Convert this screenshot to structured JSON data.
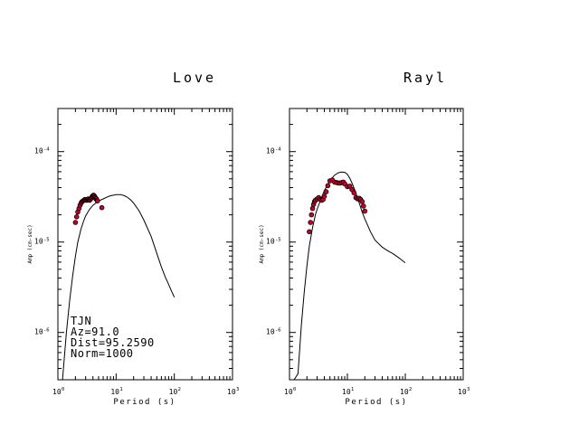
{
  "chart_data": [
    {
      "type": "line",
      "title": "Love",
      "xlabel": "Period (s)",
      "ylabel": "Amp (cm-sec)",
      "x_scale": "log",
      "y_scale": "log",
      "xlim": [
        1,
        1000
      ],
      "ylim": [
        3e-07,
        0.0003
      ],
      "x_ticks": [
        {
          "base": "10",
          "exp": "0"
        },
        {
          "base": "10",
          "exp": "1"
        },
        {
          "base": "10",
          "exp": "2"
        },
        {
          "base": "10",
          "exp": "3"
        }
      ],
      "y_ticks": [
        {
          "value": 1e-06,
          "base": "10",
          "exp": "-6"
        },
        {
          "value": 1e-05,
          "base": "10",
          "exp": "-5"
        },
        {
          "value": 0.0001,
          "base": "10",
          "exp": "-4"
        }
      ],
      "annotation": [
        "TJN",
        "Az=91.0",
        "Dist=95.2590",
        "Norm=1000"
      ],
      "series": [
        {
          "kind": "line",
          "x": [
            1.2,
            1.4,
            1.6,
            1.8,
            2.0,
            2.2,
            2.5,
            2.8,
            3.0,
            3.5,
            4.0,
            5.0,
            6.0,
            7.0,
            8.0,
            9.0,
            10.0,
            11.0,
            12.0,
            14.0,
            16.0,
            18.0,
            20.0,
            25.0,
            30.0,
            40.0,
            50.0,
            60.0,
            70.0,
            80.0,
            90.0,
            100.0
          ],
          "y": [
            3e-07,
            1e-06,
            2.3e-06,
            4.3e-06,
            7e-06,
            1e-05,
            1.4e-05,
            1.75e-05,
            1.95e-05,
            2.3e-05,
            2.55e-05,
            2.85e-05,
            3e-05,
            3.15e-05,
            3.25e-05,
            3.3e-05,
            3.35e-05,
            3.35e-05,
            3.35e-05,
            3.25e-05,
            3.1e-05,
            2.9e-05,
            2.7e-05,
            2.2e-05,
            1.75e-05,
            1.15e-05,
            7.5e-06,
            5.3e-06,
            4.1e-06,
            3.4e-06,
            2.85e-06,
            2.45e-06
          ]
        },
        {
          "kind": "scatter",
          "x": [
            2.0,
            2.1,
            2.2,
            2.3,
            2.4,
            2.5,
            2.6,
            2.7,
            2.8,
            2.9,
            3.0,
            3.1,
            3.2,
            3.3,
            3.4,
            3.5,
            3.6,
            3.7,
            3.8,
            3.9,
            4.0,
            4.1,
            4.2,
            4.3,
            4.4,
            4.5,
            4.6,
            4.7,
            4.8,
            5.7
          ],
          "y": [
            1.65e-05,
            1.9e-05,
            2.15e-05,
            2.35e-05,
            2.55e-05,
            2.7e-05,
            2.8e-05,
            2.85e-05,
            2.9e-05,
            2.95e-05,
            2.95e-05,
            2.9e-05,
            2.95e-05,
            3e-05,
            2.95e-05,
            2.9e-05,
            2.95e-05,
            3.05e-05,
            3.1e-05,
            3.2e-05,
            3.25e-05,
            3.3e-05,
            3.25e-05,
            3.15e-05,
            3.1e-05,
            3e-05,
            3e-05,
            2.9e-05,
            2.85e-05,
            2.4e-05
          ]
        }
      ]
    },
    {
      "type": "line",
      "title": "Rayl",
      "xlabel": "Period (s)",
      "ylabel": "Amp (cm-sec)",
      "x_scale": "log",
      "y_scale": "log",
      "xlim": [
        1,
        1000
      ],
      "ylim": [
        3e-07,
        0.0003
      ],
      "x_ticks": [
        {
          "base": "10",
          "exp": "0"
        },
        {
          "base": "10",
          "exp": "1"
        },
        {
          "base": "10",
          "exp": "2"
        },
        {
          "base": "10",
          "exp": "3"
        }
      ],
      "y_ticks": [
        {
          "value": 1e-06,
          "base": "10",
          "exp": "-6"
        },
        {
          "value": 1e-05,
          "base": "10",
          "exp": "-5"
        },
        {
          "value": 0.0001,
          "base": "10",
          "exp": "-4"
        }
      ],
      "series": [
        {
          "kind": "line",
          "x": [
            1.2,
            1.4,
            1.6,
            1.8,
            2.0,
            2.2,
            2.5,
            2.8,
            3.0,
            3.5,
            4.0,
            5.0,
            6.0,
            7.0,
            8.0,
            9.0,
            10.0,
            11.0,
            12.0,
            14.0,
            16.0,
            18.0,
            20.0,
            25.0,
            30.0,
            40.0,
            50.0,
            60.0,
            70.0,
            80.0,
            90.0,
            100.0
          ],
          "y": [
            3e-07,
            3.5e-07,
            1.2e-06,
            2.8e-06,
            5.5e-06,
            9e-06,
            1.45e-05,
            2e-05,
            2.3e-05,
            3e-05,
            3.7e-05,
            4.8e-05,
            5.5e-05,
            5.85e-05,
            5.95e-05,
            5.9e-05,
            5.6e-05,
            5.1e-05,
            4.5e-05,
            3.5e-05,
            2.7e-05,
            2.15e-05,
            1.8e-05,
            1.3e-05,
            1.05e-05,
            8.8e-06,
            8e-06,
            7.5e-06,
            7e-06,
            6.6e-06,
            6.2e-06,
            5.9e-06
          ]
        },
        {
          "kind": "scatter",
          "x": [
            2.2,
            2.3,
            2.4,
            2.5,
            2.6,
            2.7,
            2.8,
            3.0,
            3.2,
            3.4,
            3.6,
            3.8,
            4.0,
            4.3,
            4.6,
            5.0,
            5.5,
            6.0,
            6.5,
            7.0,
            7.5,
            8.0,
            8.5,
            9.0,
            10.0,
            11.0,
            12.0,
            13.0,
            14.0,
            15.0,
            16.0,
            17.0,
            18.0,
            19.0,
            20.0
          ],
          "y": [
            1.3e-05,
            1.65e-05,
            2e-05,
            2.35e-05,
            2.6e-05,
            2.8e-05,
            2.9e-05,
            3e-05,
            3.1e-05,
            2.95e-05,
            2.9e-05,
            2.95e-05,
            3.2e-05,
            3.6e-05,
            4.2e-05,
            4.75e-05,
            4.85e-05,
            4.6e-05,
            4.55e-05,
            4.5e-05,
            4.5e-05,
            4.55e-05,
            4.6e-05,
            4.4e-05,
            4.1e-05,
            4.15e-05,
            3.8e-05,
            3.5e-05,
            3.1e-05,
            3e-05,
            3.05e-05,
            2.95e-05,
            2.8e-05,
            2.5e-05,
            2.2e-05
          ]
        }
      ]
    }
  ],
  "style": {
    "axis_color": "#000000",
    "line_color": "#000000",
    "marker_fill": "#c8002c",
    "marker_edge": "#000000",
    "background": "#ffffff"
  }
}
